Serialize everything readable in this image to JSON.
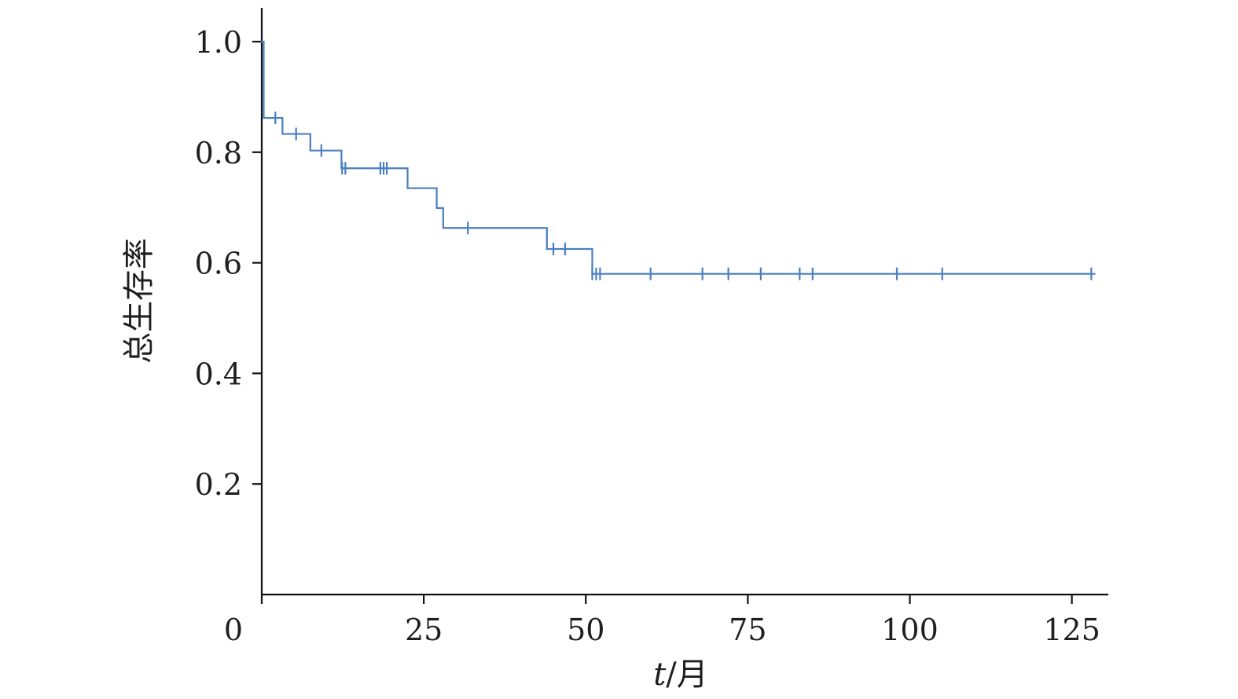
{
  "chart_data": {
    "type": "line",
    "title": "",
    "xlabel": "t/月",
    "xlabel_italic_part": "t",
    "xlabel_unit_part": "/月",
    "ylabel": "总生存率",
    "xlim": [
      0,
      130
    ],
    "ylim": [
      0,
      1.06
    ],
    "x_ticks": [
      0,
      25,
      50,
      75,
      100,
      125
    ],
    "x_tick_labels": [
      "0",
      "25",
      "50",
      "75",
      "100",
      "125"
    ],
    "y_ticks": [
      0.2,
      0.4,
      0.6,
      0.8,
      1.0
    ],
    "y_tick_labels": [
      "0.2",
      "0.4",
      "0.6",
      "0.8",
      "1.0"
    ],
    "grid": false,
    "legend": "none",
    "series": [
      {
        "color": "#4a7fc0",
        "x": [
          0,
          0.3,
          3,
          3.2,
          6.4,
          7.5,
          12.3,
          22.5,
          27,
          28,
          44,
          51,
          128.5
        ],
        "y": [
          1.0,
          0.862,
          0.862,
          0.833,
          0.833,
          0.803,
          0.771,
          0.735,
          0.699,
          0.663,
          0.625,
          0.58,
          0.58
        ],
        "censored": [
          {
            "x": 2.1,
            "y": 0.862
          },
          {
            "x": 5.3,
            "y": 0.833
          },
          {
            "x": 9.2,
            "y": 0.803
          },
          {
            "x": 12.4,
            "y": 0.771
          },
          {
            "x": 12.9,
            "y": 0.771
          },
          {
            "x": 18.3,
            "y": 0.771
          },
          {
            "x": 18.8,
            "y": 0.771
          },
          {
            "x": 19.3,
            "y": 0.771
          },
          {
            "x": 31.8,
            "y": 0.663
          },
          {
            "x": 45.0,
            "y": 0.625
          },
          {
            "x": 46.8,
            "y": 0.625
          },
          {
            "x": 51.0,
            "y": 0.58
          },
          {
            "x": 51.6,
            "y": 0.58
          },
          {
            "x": 52.2,
            "y": 0.58
          },
          {
            "x": 60.0,
            "y": 0.58
          },
          {
            "x": 68.0,
            "y": 0.58
          },
          {
            "x": 72.0,
            "y": 0.58
          },
          {
            "x": 77.0,
            "y": 0.58
          },
          {
            "x": 83.0,
            "y": 0.58
          },
          {
            "x": 85.0,
            "y": 0.58
          },
          {
            "x": 98.0,
            "y": 0.58
          },
          {
            "x": 105.0,
            "y": 0.58
          },
          {
            "x": 128.0,
            "y": 0.58
          }
        ]
      }
    ]
  }
}
